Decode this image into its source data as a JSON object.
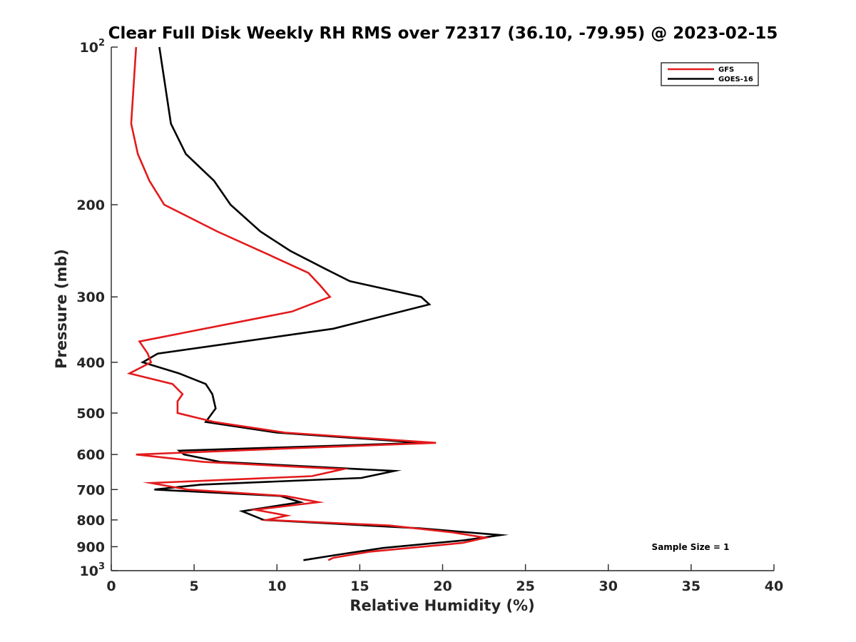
{
  "chart_data": {
    "type": "line",
    "title": "Clear Full Disk Weekly RH RMS over 72317 (36.10, -79.95) @ 2023-02-15",
    "xlabel": "Relative Humidity (%)",
    "ylabel": "Pressure (mb)",
    "xlim": [
      0,
      40
    ],
    "ylim": [
      100,
      1000
    ],
    "y_scale": "log",
    "y_reversed": true,
    "grid": false,
    "legend_position": "top-right",
    "annotation": "Sample Size = 1",
    "x_ticks": [
      "0",
      "5",
      "10",
      "15",
      "20",
      "25",
      "30",
      "35",
      "40"
    ],
    "y_ticks": [
      {
        "value": 100,
        "base": "10",
        "exp": "2"
      },
      {
        "value": 200,
        "label": "200"
      },
      {
        "value": 300,
        "label": "300"
      },
      {
        "value": 400,
        "label": "400"
      },
      {
        "value": 500,
        "label": "500"
      },
      {
        "value": 600,
        "label": "600"
      },
      {
        "value": 700,
        "label": "700"
      },
      {
        "value": 800,
        "label": "800"
      },
      {
        "value": 900,
        "label": "900"
      },
      {
        "value": 1000,
        "base": "10",
        "exp": "3"
      }
    ],
    "series": [
      {
        "name": "GFS",
        "color": "#e31a1c",
        "points": [
          [
            1.5,
            100
          ],
          [
            1.2,
            140
          ],
          [
            1.6,
            160
          ],
          [
            2.3,
            180
          ],
          [
            3.2,
            200
          ],
          [
            6.4,
            225
          ],
          [
            9.6,
            250
          ],
          [
            11.9,
            270
          ],
          [
            12.6,
            285
          ],
          [
            13.2,
            300
          ],
          [
            10.9,
            320
          ],
          [
            1.7,
            365
          ],
          [
            2.2,
            385
          ],
          [
            2.4,
            400
          ],
          [
            1.1,
            420
          ],
          [
            3.7,
            440
          ],
          [
            4.3,
            460
          ],
          [
            4.0,
            475
          ],
          [
            4.0,
            500
          ],
          [
            6.2,
            520
          ],
          [
            10.5,
            545
          ],
          [
            19.6,
            570
          ],
          [
            10.2,
            585
          ],
          [
            1.5,
            600
          ],
          [
            5.6,
            620
          ],
          [
            14.0,
            640
          ],
          [
            12.1,
            660
          ],
          [
            2.4,
            680
          ],
          [
            4.6,
            700
          ],
          [
            10.5,
            720
          ],
          [
            12.5,
            740
          ],
          [
            8.7,
            765
          ],
          [
            10.6,
            785
          ],
          [
            9.4,
            800
          ],
          [
            16.8,
            820
          ],
          [
            20.6,
            845
          ],
          [
            22.6,
            865
          ],
          [
            21.2,
            885
          ],
          [
            15.6,
            920
          ],
          [
            13.4,
            945
          ],
          [
            13.1,
            955
          ]
        ]
      },
      {
        "name": "GOES-16",
        "color": "#000000",
        "points": [
          [
            2.9,
            100
          ],
          [
            3.6,
            140
          ],
          [
            4.5,
            160
          ],
          [
            6.2,
            180
          ],
          [
            7.2,
            200
          ],
          [
            9.0,
            225
          ],
          [
            10.8,
            245
          ],
          [
            12.9,
            265
          ],
          [
            14.4,
            280
          ],
          [
            18.7,
            300
          ],
          [
            19.2,
            310
          ],
          [
            13.4,
            345
          ],
          [
            2.8,
            385
          ],
          [
            1.9,
            400
          ],
          [
            4.1,
            420
          ],
          [
            5.7,
            440
          ],
          [
            6.1,
            460
          ],
          [
            6.3,
            490
          ],
          [
            5.7,
            520
          ],
          [
            10.0,
            545
          ],
          [
            18.8,
            570
          ],
          [
            4.1,
            590
          ],
          [
            4.4,
            600
          ],
          [
            6.6,
            620
          ],
          [
            17.1,
            645
          ],
          [
            15.1,
            665
          ],
          [
            5.4,
            685
          ],
          [
            2.6,
            700
          ],
          [
            10.2,
            720
          ],
          [
            11.4,
            740
          ],
          [
            7.9,
            770
          ],
          [
            9.2,
            800
          ],
          [
            18.6,
            830
          ],
          [
            23.5,
            855
          ],
          [
            21.3,
            875
          ],
          [
            16.4,
            905
          ],
          [
            13.4,
            935
          ],
          [
            11.6,
            955
          ]
        ]
      }
    ]
  }
}
